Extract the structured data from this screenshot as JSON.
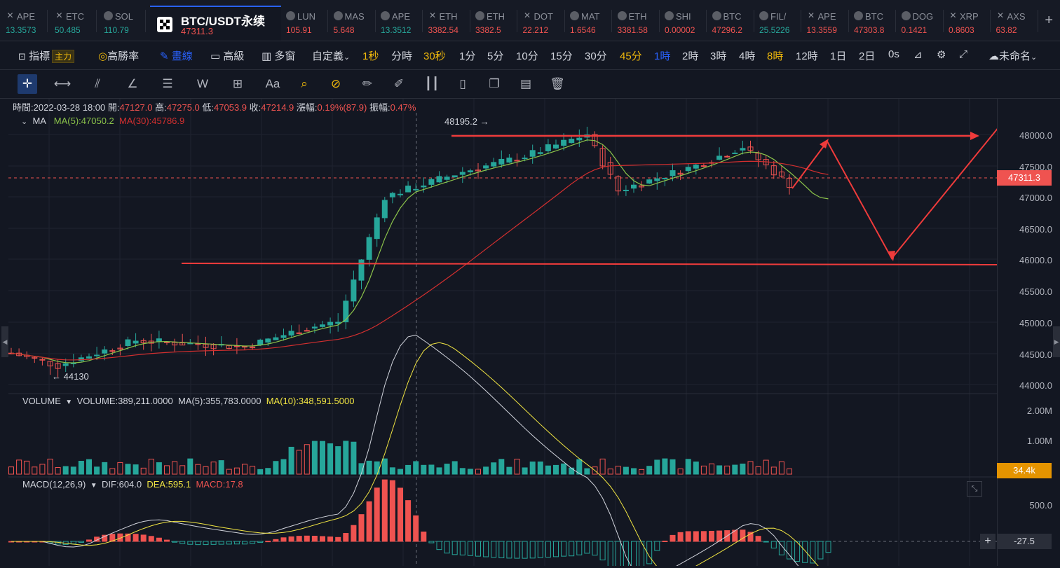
{
  "tabs": [
    {
      "symbol": "APE",
      "price": "13.3573",
      "dir": "up",
      "icon": "x"
    },
    {
      "symbol": "ETC",
      "price": "50.485",
      "dir": "up",
      "icon": "x"
    },
    {
      "symbol": "SOL",
      "price": "110.79",
      "dir": "up",
      "icon": "c"
    },
    {
      "symbol": "LUN",
      "price": "105.91",
      "dir": "dn",
      "icon": "c"
    },
    {
      "symbol": "MAS",
      "price": "5.648",
      "dir": "dn",
      "icon": "c"
    },
    {
      "symbol": "APE",
      "price": "13.3512",
      "dir": "up",
      "icon": "c"
    },
    {
      "symbol": "ETH",
      "price": "3382.54",
      "dir": "dn",
      "icon": "x"
    },
    {
      "symbol": "ETH",
      "price": "3382.5",
      "dir": "dn",
      "icon": "c"
    },
    {
      "symbol": "DOT",
      "price": "22.212",
      "dir": "dn",
      "icon": "x"
    },
    {
      "symbol": "MAT",
      "price": "1.6546",
      "dir": "dn",
      "icon": "c"
    },
    {
      "symbol": "ETH",
      "price": "3381.58",
      "dir": "dn",
      "icon": "c"
    },
    {
      "symbol": "SHI",
      "price": "0.00002",
      "dir": "dn",
      "icon": "c"
    },
    {
      "symbol": "BTC",
      "price": "47296.2",
      "dir": "dn",
      "icon": "c"
    },
    {
      "symbol": "FIL/",
      "price": "25.5226",
      "dir": "up",
      "icon": "c"
    },
    {
      "symbol": "APE",
      "price": "13.3559",
      "dir": "dn",
      "icon": "x"
    },
    {
      "symbol": "BTC",
      "price": "47303.8",
      "dir": "dn",
      "icon": "c"
    },
    {
      "symbol": "DOG",
      "price": "0.1421",
      "dir": "dn",
      "icon": "c"
    },
    {
      "symbol": "XRP",
      "price": "0.8603",
      "dir": "dn",
      "icon": "x"
    },
    {
      "symbol": "AXS",
      "price": "63.82",
      "dir": "dn",
      "icon": "x"
    }
  ],
  "active": {
    "title": "BTC/USDT永续",
    "price": "47311.3"
  },
  "toolbar": {
    "indicator": "指標",
    "main_badge": "主力",
    "win_rate": "高勝率",
    "draw": "畫線",
    "advanced": "高級",
    "multi": "多窗",
    "custom": "自定義",
    "intervals": [
      "1秒",
      "分時",
      "30秒",
      "1分",
      "5分",
      "10分",
      "15分",
      "30分",
      "45分",
      "1時",
      "2時",
      "3時",
      "4時",
      "8時",
      "12時",
      "1日",
      "2日",
      "0s"
    ],
    "layout_name": "未命名"
  },
  "draw_tools": {
    "text_tool": "Aa"
  },
  "ohlc": {
    "time_label": "時間:",
    "time": "2022-03-28 18:00",
    "open_label": "開:",
    "open": "47127.0",
    "high_label": "高:",
    "high": "47275.0",
    "low_label": "低:",
    "low": "47053.9",
    "close_label": "收:",
    "close": "47214.9",
    "chg_label": "漲幅:",
    "chg": "0.19%(87.9)",
    "amp_label": "振幅:",
    "amp": "0.47%"
  },
  "ma": {
    "label": "MA",
    "ma5": "MA(5):47050.2",
    "ma30": "MA(30):45786.9"
  },
  "volume": {
    "label": "VOLUME",
    "value": "VOLUME:389,211.0000",
    "ma5": "MA(5):355,783.0000",
    "ma10": "MA(10):348,591.5000",
    "tag": "34.4k"
  },
  "macd": {
    "label": "MACD(12,26,9)",
    "dif": "DIF:604.0",
    "dea": "DEA:595.1",
    "macd": "MACD:17.8",
    "tag": "-27.5"
  },
  "annotations": {
    "high_mark": "48195.2",
    "low_mark": "44130",
    "last_price": "47311.3"
  },
  "price_axis": [
    "48000.0",
    "47500.0",
    "47000.0",
    "46500.0",
    "46000.0",
    "45500.0",
    "45000.0",
    "44500.0",
    "44000.0"
  ],
  "volume_axis": [
    "2.00M",
    "1.00M"
  ],
  "macd_axis": [
    "500.0"
  ],
  "colors": {
    "up": "#26a69a",
    "down": "#ef5350",
    "ma5": "#8bc34a",
    "ma30": "#d32f2f",
    "accent": "#2962ff",
    "highlight": "#f0b90b"
  }
}
